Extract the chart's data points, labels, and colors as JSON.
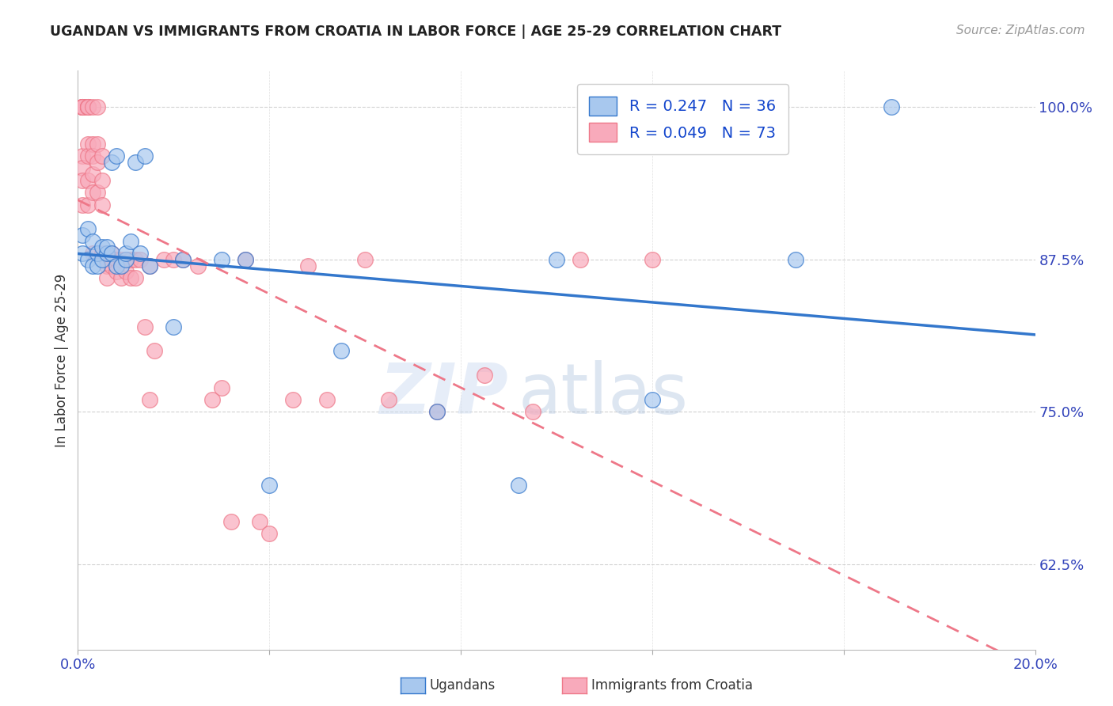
{
  "title": "UGANDAN VS IMMIGRANTS FROM CROATIA IN LABOR FORCE | AGE 25-29 CORRELATION CHART",
  "source": "Source: ZipAtlas.com",
  "ylabel": "In Labor Force | Age 25-29",
  "legend_ugandan": "R = 0.247   N = 36",
  "legend_croatia": "R = 0.049   N = 73",
  "legend_bottom_1": "Ugandans",
  "legend_bottom_2": "Immigrants from Croatia",
  "xlim": [
    0.0,
    0.2
  ],
  "ylim": [
    0.555,
    1.03
  ],
  "xticks": [
    0.0,
    0.04,
    0.08,
    0.12,
    0.16,
    0.2
  ],
  "ytick_labels": [
    "62.5%",
    "75.0%",
    "87.5%",
    "100.0%"
  ],
  "yticks": [
    0.625,
    0.75,
    0.875,
    1.0
  ],
  "color_ugandan": "#A8C8EE",
  "color_croatia": "#F8AABB",
  "color_line_ugandan": "#3377CC",
  "color_line_croatia": "#EE7788",
  "color_axis_labels": "#3344BB",
  "color_title": "#222222",
  "color_source": "#999999",
  "scatter_ugandan_x": [
    0.001,
    0.001,
    0.002,
    0.002,
    0.003,
    0.003,
    0.004,
    0.004,
    0.005,
    0.005,
    0.006,
    0.006,
    0.007,
    0.007,
    0.008,
    0.008,
    0.009,
    0.01,
    0.01,
    0.011,
    0.012,
    0.013,
    0.014,
    0.015,
    0.02,
    0.022,
    0.03,
    0.035,
    0.04,
    0.055,
    0.075,
    0.092,
    0.1,
    0.12,
    0.15,
    0.17
  ],
  "scatter_ugandan_y": [
    0.88,
    0.895,
    0.875,
    0.9,
    0.87,
    0.89,
    0.87,
    0.88,
    0.875,
    0.885,
    0.88,
    0.885,
    0.88,
    0.955,
    0.87,
    0.96,
    0.87,
    0.875,
    0.88,
    0.89,
    0.955,
    0.88,
    0.96,
    0.87,
    0.82,
    0.875,
    0.875,
    0.875,
    0.69,
    0.8,
    0.75,
    0.69,
    0.875,
    0.76,
    0.875,
    1.0
  ],
  "scatter_croatia_x": [
    0.001,
    0.001,
    0.001,
    0.001,
    0.001,
    0.001,
    0.001,
    0.001,
    0.001,
    0.001,
    0.001,
    0.002,
    0.002,
    0.002,
    0.002,
    0.002,
    0.002,
    0.002,
    0.002,
    0.003,
    0.003,
    0.003,
    0.003,
    0.003,
    0.003,
    0.004,
    0.004,
    0.004,
    0.004,
    0.005,
    0.005,
    0.005,
    0.005,
    0.006,
    0.006,
    0.006,
    0.007,
    0.007,
    0.008,
    0.008,
    0.009,
    0.009,
    0.01,
    0.01,
    0.011,
    0.011,
    0.012,
    0.012,
    0.013,
    0.014,
    0.015,
    0.015,
    0.016,
    0.018,
    0.02,
    0.022,
    0.025,
    0.028,
    0.03,
    0.032,
    0.035,
    0.038,
    0.04,
    0.045,
    0.048,
    0.052,
    0.06,
    0.065,
    0.075,
    0.085,
    0.095,
    0.105,
    0.12
  ],
  "scatter_croatia_y": [
    1.0,
    1.0,
    1.0,
    1.0,
    1.0,
    1.0,
    1.0,
    0.96,
    0.95,
    0.94,
    0.92,
    1.0,
    1.0,
    1.0,
    1.0,
    0.97,
    0.96,
    0.94,
    0.92,
    1.0,
    0.97,
    0.96,
    0.945,
    0.93,
    0.88,
    1.0,
    0.97,
    0.955,
    0.93,
    0.96,
    0.94,
    0.92,
    0.88,
    0.875,
    0.87,
    0.86,
    0.88,
    0.87,
    0.875,
    0.865,
    0.875,
    0.86,
    0.875,
    0.865,
    0.875,
    0.86,
    0.875,
    0.86,
    0.875,
    0.82,
    0.87,
    0.76,
    0.8,
    0.875,
    0.875,
    0.875,
    0.87,
    0.76,
    0.77,
    0.66,
    0.875,
    0.66,
    0.65,
    0.76,
    0.87,
    0.76,
    0.875,
    0.76,
    0.75,
    0.78,
    0.75,
    0.875,
    0.875
  ],
  "watermark_zip": "ZIP",
  "watermark_atlas": "atlas",
  "background_color": "#FFFFFF",
  "grid_color": "#CCCCCC"
}
